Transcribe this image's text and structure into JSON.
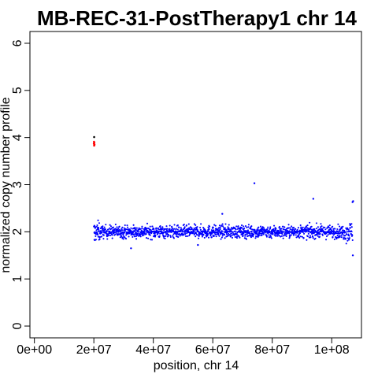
{
  "chart_data": {
    "type": "scatter",
    "title": "MB-REC-31-PostTherapy1 chr 14",
    "xlabel": "position, chr 14",
    "ylabel": "normalized copy number profile",
    "xlim": [
      -1500000,
      110000000
    ],
    "ylim": [
      -0.25,
      6.25
    ],
    "x_ticks": [
      0,
      20000000,
      40000000,
      60000000,
      80000000,
      100000000
    ],
    "x_tick_labels": [
      "0e+00",
      "2e+07",
      "4e+07",
      "6e+07",
      "8e+07",
      "1e+08"
    ],
    "y_ticks": [
      0,
      1,
      2,
      3,
      4,
      5,
      6
    ],
    "y_tick_labels": [
      "0",
      "1",
      "2",
      "3",
      "4",
      "5",
      "6"
    ],
    "grid": false,
    "series": [
      {
        "color": "#0000ff",
        "values_summary": "dense band of points spanning x≈2.0e7–1.07e8 centered near y=2.0 (mostly 1.7–2.3)",
        "band": {
          "x_start": 20000000,
          "x_end": 107000000,
          "center": 2.0,
          "spread": 0.12
        },
        "outliers": [
          {
            "x": 20200000,
            "y": 1.83
          },
          {
            "x": 63200000,
            "y": 2.38
          },
          {
            "x": 74000000,
            "y": 3.03
          },
          {
            "x": 93800000,
            "y": 2.7
          },
          {
            "x": 107000000,
            "y": 2.63
          },
          {
            "x": 107200000,
            "y": 2.65
          },
          {
            "x": 107100000,
            "y": 1.5
          },
          {
            "x": 32500000,
            "y": 1.65
          },
          {
            "x": 55000000,
            "y": 1.72
          }
        ]
      },
      {
        "color": "#ff0000",
        "points": [
          {
            "x": 20000000,
            "y": 3.87
          },
          {
            "x": 20050000,
            "y": 3.91
          },
          {
            "x": 20100000,
            "y": 3.83
          },
          {
            "x": 20150000,
            "y": 3.89
          },
          {
            "x": 20200000,
            "y": 3.85
          }
        ]
      },
      {
        "color": "#000000",
        "points": [
          {
            "x": 20100000,
            "y": 4.01
          }
        ]
      }
    ]
  }
}
